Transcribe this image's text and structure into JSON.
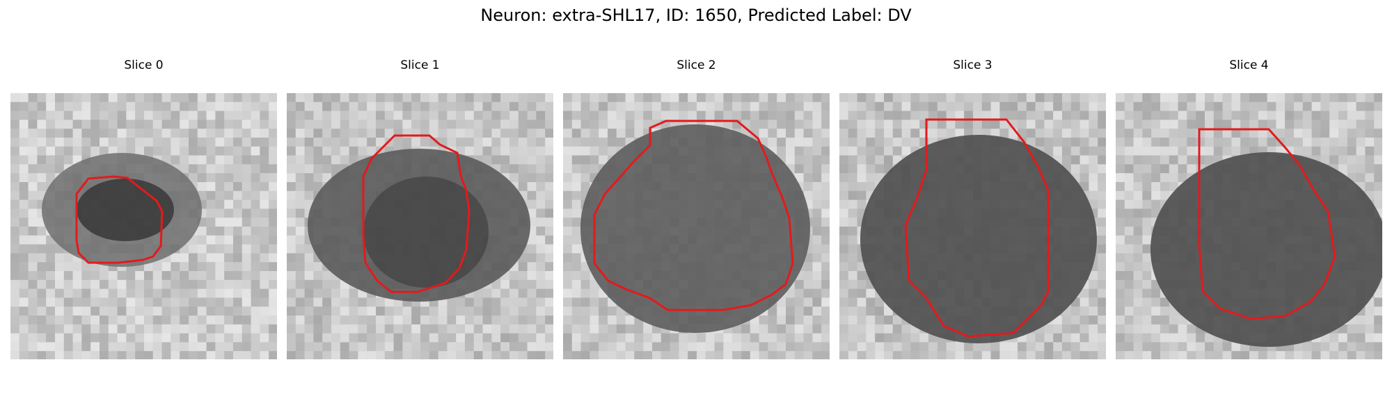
{
  "figure": {
    "title": "Neuron: extra-SHL17, ID: 1650, Predicted Label: DV",
    "contour_color": "#e31a1c"
  },
  "panels": [
    {
      "label": "Slice 0"
    },
    {
      "label": "Slice 1"
    },
    {
      "label": "Slice 2"
    },
    {
      "label": "Slice 3"
    },
    {
      "label": "Slice 4"
    }
  ]
}
